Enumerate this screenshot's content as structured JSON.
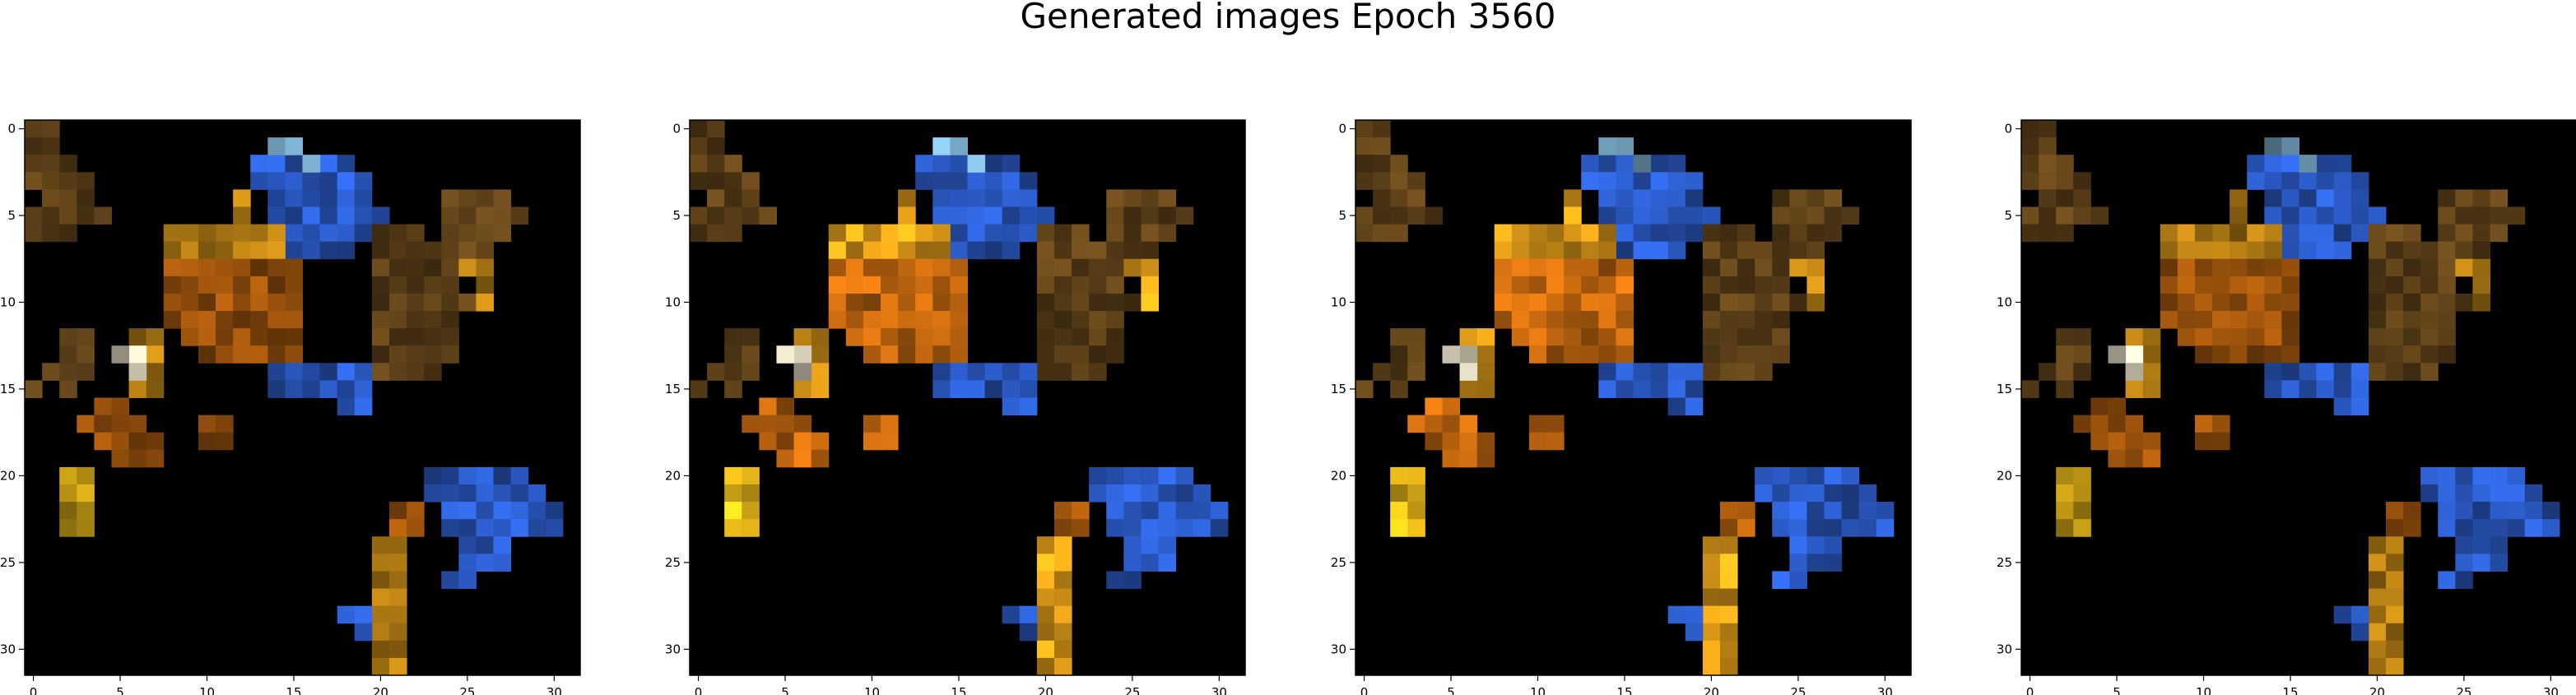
{
  "figure": {
    "title": "Generated images Epoch 3560"
  },
  "panels": [
    {
      "name": "generated-image-1",
      "x_ticks": [
        "0",
        "5",
        "10",
        "15",
        "20",
        "25",
        "30"
      ],
      "y_ticks": [
        "0",
        "5",
        "10",
        "15",
        "20",
        "25",
        "30"
      ]
    },
    {
      "name": "generated-image-2",
      "x_ticks": [
        "0",
        "5",
        "10",
        "15",
        "20",
        "25",
        "30"
      ],
      "y_ticks": [
        "0",
        "5",
        "10",
        "15",
        "20",
        "25",
        "30"
      ]
    },
    {
      "name": "generated-image-3",
      "x_ticks": [
        "0",
        "5",
        "10",
        "15",
        "20",
        "25",
        "30"
      ],
      "y_ticks": [
        "0",
        "5",
        "10",
        "15",
        "20",
        "25",
        "30"
      ]
    },
    {
      "name": "generated-image-4",
      "x_ticks": [
        "0",
        "5",
        "10",
        "15",
        "20",
        "25",
        "30"
      ],
      "y_ticks": [
        "0",
        "5",
        "10",
        "15",
        "20",
        "25",
        "30"
      ]
    }
  ],
  "colors": {
    "gold": "#e8a21a",
    "yellow": "#f5c21b",
    "orange": "#c76a10",
    "brown": "#6b4a1c",
    "blue": "#2f63d8",
    "light_blue": "#86bde0",
    "pale": "#f2ead0",
    "background": "#000000"
  }
}
